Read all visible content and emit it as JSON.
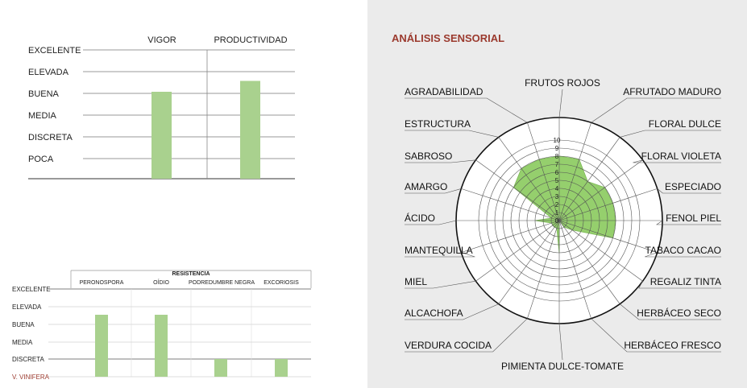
{
  "colors": {
    "bar_fill": "#a9d18e",
    "bar_stroke": "#8cbf6d",
    "radar_fill": "#95cf6d",
    "grid": "#777777",
    "title_red": "#9b3a2e",
    "axis_line": "#333333",
    "panel_bg": "#ebebeb"
  },
  "top_chart": {
    "levels": [
      "EXCELENTE",
      "ELEVADA",
      "BUENA",
      "MEDIA",
      "DISCRETA",
      "POCA"
    ],
    "column_labels": [
      "VIGOR",
      "PRODUCTIVIDAD"
    ]
  },
  "resistance_chart": {
    "title": "RESISTENCIA",
    "levels": [
      "EXCELENTE",
      "ELEVADA",
      "BUENA",
      "MEDIA",
      "DISCRETA"
    ],
    "baseline_label": "V. VINIFERA",
    "column_labels": [
      "PERONOSPORA",
      "OÍDIO",
      "PODREDUMBRE NEGRA",
      "EXCORIOSIS"
    ]
  },
  "sensory": {
    "title": "ANÁLISIS SENSORIAL",
    "rings": [
      "0",
      "1",
      "2",
      "3",
      "4",
      "5",
      "6",
      "7",
      "8",
      "9",
      "10"
    ],
    "attributes": [
      "FRUTOS ROJOS",
      "AFRUTADO MADURO",
      "FLORAL DULCE",
      "FLORAL VIOLETA",
      "ESPECIADO",
      "FENOL PIEL",
      "TABACO CACAO",
      "REGALIZ TINTA",
      "HERBÁCEO SECO",
      "HERBÁCEO FRESCO",
      "PIMIENTA DULCE-TOMATE",
      "VERDURA COCIDA",
      "ALCACHOFA",
      "MIEL",
      "MANTEQUILLA",
      "ÁCIDO",
      "AMARGO",
      "SABROSO",
      "ESTRUCTURA",
      "AGRADABILIDAD"
    ]
  },
  "chart_data": [
    {
      "type": "bar",
      "categories": [
        "VIGOR",
        "PRODUCTIVIDAD"
      ],
      "scale": [
        "POCA",
        "DISCRETA",
        "MEDIA",
        "BUENA",
        "ELEVADA",
        "EXCELENTE"
      ],
      "values": [
        "BUENA",
        "BUENA-ELEVADA"
      ],
      "numeric_values": [
        4,
        4.5
      ],
      "ylim": [
        0,
        6
      ]
    },
    {
      "type": "bar",
      "title": "RESISTENCIA",
      "categories": [
        "PERONOSPORA",
        "OÍDIO",
        "PODREDUMBRE NEGRA",
        "EXCORIOSIS"
      ],
      "scale": [
        "V. VINIFERA",
        "DISCRETA",
        "MEDIA",
        "BUENA",
        "ELEVADA",
        "EXCELENTE"
      ],
      "values": [
        "ELEVADA",
        "ELEVADA",
        "DISCRETA",
        "DISCRETA"
      ],
      "numeric_values": [
        4,
        4,
        1,
        1
      ],
      "ylim": [
        0,
        5
      ]
    },
    {
      "type": "radar",
      "title": "ANÁLISIS SENSORIAL",
      "categories": [
        "FRUTOS ROJOS",
        "AFRUTADO MADURO",
        "FLORAL DULCE",
        "FLORAL VIOLETA",
        "ESPECIADO",
        "FENOL PIEL",
        "TABACO CACAO",
        "REGALIZ TINTA",
        "HERBÁCEO SECO",
        "HERBÁCEO FRESCO",
        "PIMIENTA DULCE-TOMATE",
        "VERDURA COCIDA",
        "ALCACHOFA",
        "MIEL",
        "MANTEQUILLA",
        "ÁCIDO",
        "AMARGO",
        "SABROSO",
        "ESTRUCTURA",
        "AGRADABILIDAD"
      ],
      "values": [
        8,
        8,
        6,
        7,
        7,
        7,
        7,
        2,
        1,
        0,
        4,
        1,
        1,
        1,
        1,
        3,
        1,
        7,
        8,
        8
      ],
      "rlim": [
        0,
        10
      ]
    }
  ]
}
